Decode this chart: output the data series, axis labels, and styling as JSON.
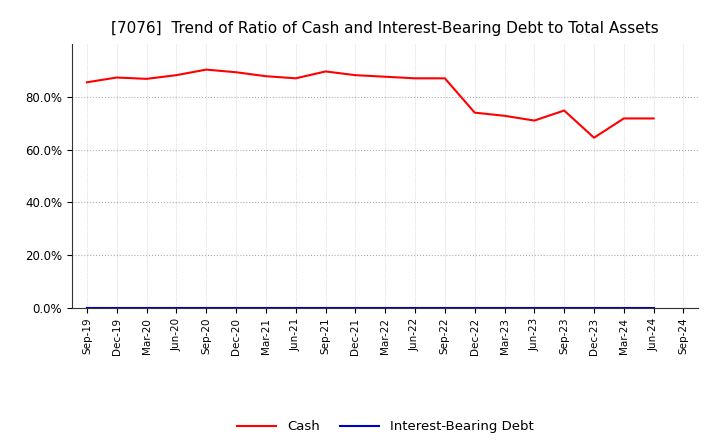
{
  "title": "[7076]  Trend of Ratio of Cash and Interest-Bearing Debt to Total Assets",
  "x_labels": [
    "Sep-19",
    "Dec-19",
    "Mar-20",
    "Jun-20",
    "Sep-20",
    "Dec-20",
    "Mar-21",
    "Jun-21",
    "Sep-21",
    "Dec-21",
    "Mar-22",
    "Jun-22",
    "Sep-22",
    "Dec-22",
    "Mar-23",
    "Jun-23",
    "Sep-23",
    "Dec-23",
    "Mar-24",
    "Jun-24",
    "Sep-24"
  ],
  "cash": [
    0.855,
    0.873,
    0.868,
    0.882,
    0.903,
    0.893,
    0.878,
    0.87,
    0.896,
    0.882,
    0.876,
    0.87,
    0.87,
    0.74,
    0.728,
    0.71,
    0.748,
    0.645,
    0.718,
    0.718,
    null
  ],
  "interest_bearing_debt": [
    0.0,
    0.0,
    0.0,
    0.0,
    0.0,
    0.0,
    0.0,
    0.0,
    0.0,
    0.0,
    0.0,
    0.0,
    0.0,
    0.0,
    0.0,
    0.0,
    0.0,
    0.0,
    0.0,
    0.0,
    null
  ],
  "cash_color": "#ff0000",
  "ibd_color": "#0000cc",
  "ylim_min": 0.0,
  "ylim_max": 1.0,
  "yticks": [
    0.0,
    0.2,
    0.4,
    0.6,
    0.8
  ],
  "yticklabels": [
    "0.0%",
    "20.0%",
    "40.0%",
    "60.0%",
    "80.0%"
  ],
  "background_color": "#ffffff",
  "plot_bg_color": "#ffffff",
  "grid_color": "#999999",
  "title_fontsize": 11,
  "legend_cash": "Cash",
  "legend_ibd": "Interest-Bearing Debt"
}
